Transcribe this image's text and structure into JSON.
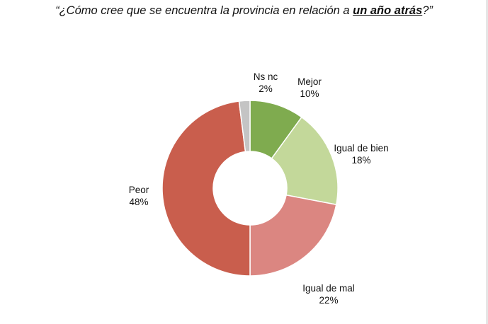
{
  "title": {
    "open_quote": "“",
    "prefix": "¿Cómo cree que se encuentra la provincia en relación a ",
    "emphasis": "un año atrás",
    "suffix": "?”"
  },
  "chart_data": {
    "type": "pie",
    "donut": true,
    "title": "“¿Cómo cree que se encuentra la provincia en relación a un año atrás?”",
    "legend": "none",
    "slices": [
      {
        "name": "Mejor",
        "value": 10,
        "percent_label": "10%",
        "color": "#7fab4f"
      },
      {
        "name": "Igual de bien",
        "value": 18,
        "percent_label": "18%",
        "color": "#c3d89a"
      },
      {
        "name": "Igual de mal",
        "value": 22,
        "percent_label": "22%",
        "color": "#db8681"
      },
      {
        "name": "Peor",
        "value": 48,
        "percent_label": "48%",
        "color": "#c95e4d"
      },
      {
        "name": "Ns nc",
        "value": 2,
        "percent_label": "2%",
        "color": "#c4c4c4"
      }
    ]
  }
}
